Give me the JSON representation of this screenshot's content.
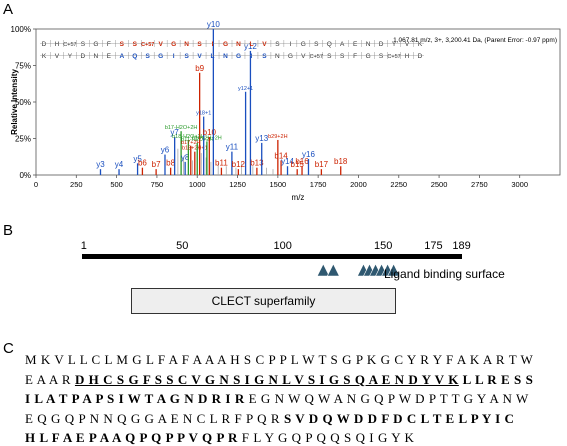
{
  "panels": {
    "a": "A",
    "b": "B",
    "c": "C"
  },
  "chart_data": {
    "type": "bar",
    "title": "",
    "header_info": "1,067.81 m/z, 3+, 3,200.41 Da, (Parent Error: -0.97 ppm)",
    "xlabel": "m/z",
    "ylabel": "Relative Intensity",
    "xlim": [
      0,
      3250
    ],
    "ylim": [
      0,
      100
    ],
    "x_ticks": [
      0,
      250,
      500,
      750,
      1000,
      1250,
      1500,
      1750,
      2000,
      2250,
      2500,
      2750,
      3000
    ],
    "y_ticks": [
      {
        "v": 0,
        "label": "0%"
      },
      {
        "v": 25,
        "label": "25%"
      },
      {
        "v": 50,
        "label": "50%"
      },
      {
        "v": 75,
        "label": "75%"
      },
      {
        "v": 100,
        "label": "100%"
      }
    ],
    "colors": {
      "b": "#cc2200",
      "y": "#1a4fbf",
      "other": "#2a9a2a",
      "unassigned": "#a8a8a8"
    },
    "sequence_top": [
      "D",
      "H",
      "C+57",
      "S",
      "G",
      "F",
      "S",
      "S",
      "C+57",
      "V",
      "G",
      "N",
      "S",
      "I",
      "G",
      "N",
      "L",
      "V",
      "S",
      "I",
      "G",
      "S",
      "Q",
      "A",
      "E",
      "N",
      "D",
      "Y",
      "V",
      "K"
    ],
    "sequence_bottom": [
      "K",
      "V",
      "Y",
      "D",
      "N",
      "E",
      "A",
      "Q",
      "S",
      "G",
      "I",
      "S",
      "V",
      "L",
      "N",
      "G",
      "I",
      "S",
      "N",
      "G",
      "V",
      "C+57",
      "S",
      "S",
      "F",
      "G",
      "S",
      "C+57",
      "H",
      "D"
    ],
    "peaks": [
      {
        "x": 400,
        "y": 4,
        "type": "y",
        "label": "y3"
      },
      {
        "x": 515,
        "y": 4,
        "type": "y",
        "label": "y4"
      },
      {
        "x": 630,
        "y": 8,
        "type": "y",
        "label": "y5"
      },
      {
        "x": 660,
        "y": 5,
        "type": "b",
        "label": "b6"
      },
      {
        "x": 745,
        "y": 4,
        "type": "b",
        "label": "b7"
      },
      {
        "x": 800,
        "y": 14,
        "type": "y",
        "label": "y6"
      },
      {
        "x": 835,
        "y": 5,
        "type": "b",
        "label": "b8"
      },
      {
        "x": 860,
        "y": 26,
        "type": "y",
        "label": "y7"
      },
      {
        "x": 900,
        "y": 30,
        "type": "other",
        "label": "b17-H2O+2H"
      },
      {
        "x": 925,
        "y": 9,
        "type": "y",
        "label": "y8"
      },
      {
        "x": 945,
        "y": 24,
        "type": "other",
        "label": "b18-H2O+2H"
      },
      {
        "x": 960,
        "y": 20,
        "type": "b",
        "label": "b17+2H"
      },
      {
        "x": 985,
        "y": 16,
        "type": "b",
        "label": "b18+2H+1"
      },
      {
        "x": 1000,
        "y": 22,
        "type": "other",
        "label": "b11-H2O+2H"
      },
      {
        "x": 1015,
        "y": 70,
        "type": "b",
        "label": "b9"
      },
      {
        "x": 1040,
        "y": 40,
        "type": "y",
        "label": "y18+1"
      },
      {
        "x": 1060,
        "y": 23,
        "type": "other",
        "label": "b18+2H+2H"
      },
      {
        "x": 1075,
        "y": 26,
        "type": "b",
        "label": "b10"
      },
      {
        "x": 1100,
        "y": 100,
        "type": "y",
        "label": "y10"
      },
      {
        "x": 1150,
        "y": 5,
        "type": "b",
        "label": "b11"
      },
      {
        "x": 1215,
        "y": 16,
        "type": "y",
        "label": "y11"
      },
      {
        "x": 1255,
        "y": 4,
        "type": "b",
        "label": "b12"
      },
      {
        "x": 1300,
        "y": 57,
        "type": "y",
        "label": "y12+1"
      },
      {
        "x": 1330,
        "y": 85,
        "type": "y",
        "label": "y12"
      },
      {
        "x": 1370,
        "y": 5,
        "type": "b",
        "label": "b13"
      },
      {
        "x": 1400,
        "y": 22,
        "type": "y",
        "label": "y13"
      },
      {
        "x": 1500,
        "y": 24,
        "type": "b",
        "label": "b29+2H"
      },
      {
        "x": 1520,
        "y": 10,
        "type": "b",
        "label": "b14"
      },
      {
        "x": 1560,
        "y": 6,
        "type": "y",
        "label": "y14"
      },
      {
        "x": 1620,
        "y": 4,
        "type": "b",
        "label": "b15"
      },
      {
        "x": 1650,
        "y": 6,
        "type": "b",
        "label": "b16"
      },
      {
        "x": 1690,
        "y": 11,
        "type": "y",
        "label": "y16"
      },
      {
        "x": 1770,
        "y": 4,
        "type": "b",
        "label": "b17"
      },
      {
        "x": 1890,
        "y": 6,
        "type": "b",
        "label": "b18"
      }
    ],
    "minor_peaks": [
      {
        "x": 880,
        "y": 18
      },
      {
        "x": 915,
        "y": 12
      },
      {
        "x": 970,
        "y": 10
      },
      {
        "x": 1025,
        "y": 15
      },
      {
        "x": 1055,
        "y": 12
      },
      {
        "x": 1085,
        "y": 9
      },
      {
        "x": 1130,
        "y": 8
      },
      {
        "x": 1180,
        "y": 6
      },
      {
        "x": 1240,
        "y": 5
      },
      {
        "x": 1275,
        "y": 8
      },
      {
        "x": 1345,
        "y": 6
      },
      {
        "x": 1430,
        "y": 5
      },
      {
        "x": 1470,
        "y": 4
      }
    ]
  },
  "domain_map": {
    "ruler_labels": [
      {
        "v": 1,
        "label": "1"
      },
      {
        "v": 50,
        "label": "50"
      },
      {
        "v": 100,
        "label": "100"
      },
      {
        "v": 150,
        "label": "150"
      },
      {
        "v": 175,
        "label": "175"
      },
      {
        "v": 189,
        "label": "189"
      }
    ],
    "ligand_label": "Ligand binding surface",
    "ligand_sites": [
      120,
      125,
      140,
      143,
      146,
      149,
      152,
      155
    ],
    "clect_label": "CLECT superfamily"
  },
  "protein_sequence": {
    "lines": [
      [
        {
          "t": "MKVLLCLMGLFAFAAAHSCPPLWTSGPKGCYRYFAKARTW",
          "s": "n"
        }
      ],
      [
        {
          "t": "EAAR",
          "s": "n"
        },
        {
          "t": "DHCSGFSSCVGNSIGNLVSIGSQAENDYVK",
          "s": "bu"
        },
        {
          "t": "LLRESS",
          "s": "b"
        }
      ],
      [
        {
          "t": "ILATPAPSIWTAGNDRIR",
          "s": "b"
        },
        {
          "t": "EGNWQWANGQPWDPTTGYANW",
          "s": "n"
        }
      ],
      [
        {
          "t": "EQGQPNNQGGAENCLRFPQR",
          "s": "n"
        },
        {
          "t": "SVDQWDDFDCLTELPYIC",
          "s": "b"
        }
      ],
      [
        {
          "t": "HLFAEPAAQPQPPVQPR",
          "s": "b"
        },
        {
          "t": "FLYGQPQQSQIGYK",
          "s": "n"
        }
      ]
    ]
  }
}
